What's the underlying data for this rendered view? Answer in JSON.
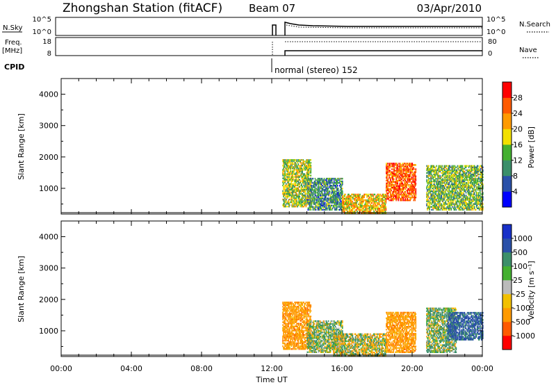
{
  "header": {
    "station": "Zhongshan Station (fitACF)",
    "beam": "Beam 07",
    "date": "03/Apr/2010"
  },
  "strip1": {
    "left_label": "N.Sky",
    "right_label": "N.Search",
    "left_ticks": [
      "10^5",
      "10^0"
    ],
    "right_ticks": [
      "10^5",
      "10^0"
    ]
  },
  "strip2": {
    "left_label_1": "Freq.",
    "left_label_2": "[MHz]",
    "right_label": "Nave",
    "left_ticks": [
      "18",
      "8"
    ],
    "right_ticks": [
      "80",
      "0"
    ]
  },
  "cpid": {
    "label": "CPID",
    "annotation": "normal (stereo) 152"
  },
  "colors": {
    "power_scale": [
      "#0000ff",
      "#2a50a8",
      "#3b8f6a",
      "#44b030",
      "#f2e000",
      "#ff9a00",
      "#ff5a00",
      "#ff0000"
    ],
    "velocity_scale": [
      "#ff0000",
      "#ff5a00",
      "#ff9a00",
      "#f2c000",
      "#bbbbbb",
      "#44b030",
      "#3b8f6a",
      "#2a50a8",
      "#1830c8"
    ]
  },
  "chart_data": [
    {
      "type": "heatmap",
      "panel": "power",
      "ylabel": "Slant Range [km]",
      "yticks": [
        "1000",
        "2000",
        "3000",
        "4000"
      ],
      "ylim": [
        180,
        4500
      ],
      "xlim": [
        0,
        24
      ],
      "colorbar": {
        "label": "Power [dB]",
        "ticks": [
          "4",
          "8",
          "12",
          "16",
          "20",
          "24",
          "28"
        ],
        "range": [
          0,
          32
        ]
      },
      "echo_regions": [
        {
          "t_start": 12.6,
          "t_end": 14.2,
          "r_start": 400,
          "r_end": 1900,
          "value": 16
        },
        {
          "t_start": 14.0,
          "t_end": 16.0,
          "r_start": 300,
          "r_end": 1300,
          "value": 10
        },
        {
          "t_start": 16.0,
          "t_end": 18.5,
          "r_start": 200,
          "r_end": 800,
          "value": 20
        },
        {
          "t_start": 18.5,
          "t_end": 20.2,
          "r_start": 600,
          "r_end": 1800,
          "value": 26
        },
        {
          "t_start": 20.8,
          "t_end": 24.0,
          "r_start": 300,
          "r_end": 1700,
          "value": 14
        }
      ]
    },
    {
      "type": "heatmap",
      "panel": "velocity",
      "ylabel": "Slant Range [km]",
      "yticks": [
        "1000",
        "2000",
        "3000",
        "4000"
      ],
      "ylim": [
        180,
        4500
      ],
      "xlim": [
        0,
        24
      ],
      "xlabel": "Time UT",
      "xticks": [
        "00:00",
        "04:00",
        "08:00",
        "12:00",
        "16:00",
        "20:00",
        "00:00"
      ],
      "colorbar": {
        "label": "Velocity [m s⁻¹]",
        "ticks": [
          "-1000",
          "-500",
          "-100",
          "-25",
          "25",
          "100",
          "500",
          "1000"
        ]
      },
      "echo_regions": [
        {
          "t_start": 12.6,
          "t_end": 14.2,
          "r_start": 400,
          "r_end": 1900,
          "value": -300
        },
        {
          "t_start": 14.0,
          "t_end": 16.0,
          "r_start": 300,
          "r_end": 1300,
          "value": 80
        },
        {
          "t_start": 15.5,
          "t_end": 18.5,
          "r_start": 200,
          "r_end": 900,
          "value": 0
        },
        {
          "t_start": 18.5,
          "t_end": 20.2,
          "r_start": 300,
          "r_end": 1600,
          "value": -300
        },
        {
          "t_start": 20.8,
          "t_end": 22.5,
          "r_start": 300,
          "r_end": 1700,
          "value": 100
        },
        {
          "t_start": 22.0,
          "t_end": 24.0,
          "r_start": 700,
          "r_end": 1600,
          "value": 600
        }
      ]
    }
  ]
}
